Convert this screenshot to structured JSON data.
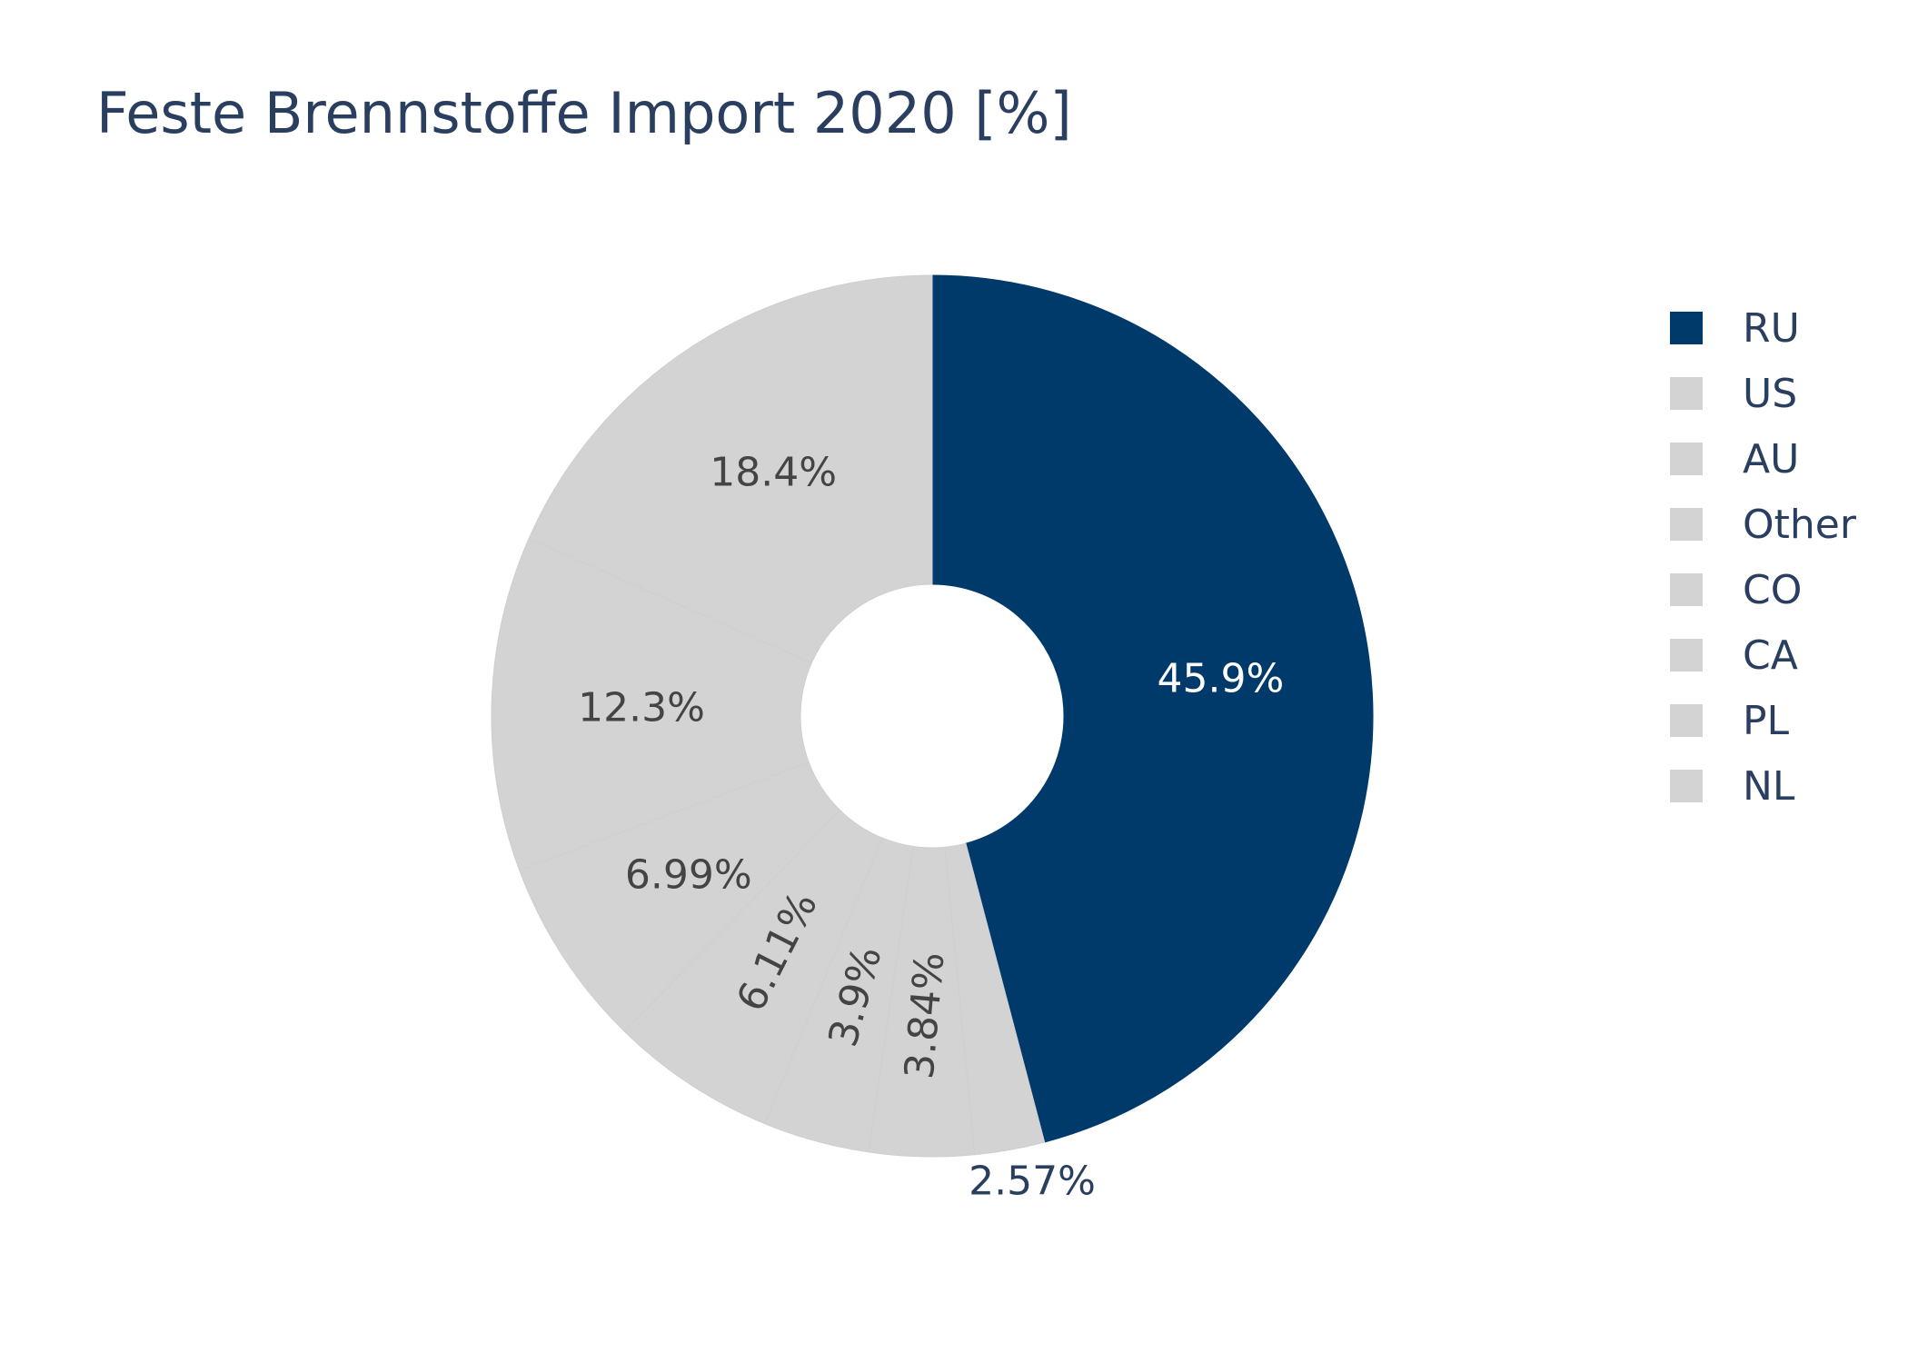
{
  "chart_data": {
    "type": "pie",
    "hole": true,
    "title": "Feste Brennstoffe Import 2020 [%]",
    "categories": [
      "RU",
      "US",
      "AU",
      "Other",
      "CO",
      "CA",
      "PL",
      "NL"
    ],
    "values": [
      45.9,
      18.4,
      12.3,
      6.99,
      6.11,
      3.9,
      3.84,
      2.57
    ],
    "slice_order": [
      "RU",
      "NL",
      "PL",
      "CA",
      "CO",
      "Other",
      "AU",
      "US"
    ],
    "data_labels": [
      "45.9%",
      "18.4%",
      "12.3%",
      "6.99%",
      "6.11%",
      "3.9%",
      "3.84%",
      "2.57%"
    ],
    "colors": [
      "#003a6a",
      "#d3d3d3",
      "#d3d3d3",
      "#d3d3d3",
      "#d3d3d3",
      "#d3d3d3",
      "#d3d3d3",
      "#d3d3d3"
    ],
    "highlight": "RU",
    "legend_position": "right"
  }
}
